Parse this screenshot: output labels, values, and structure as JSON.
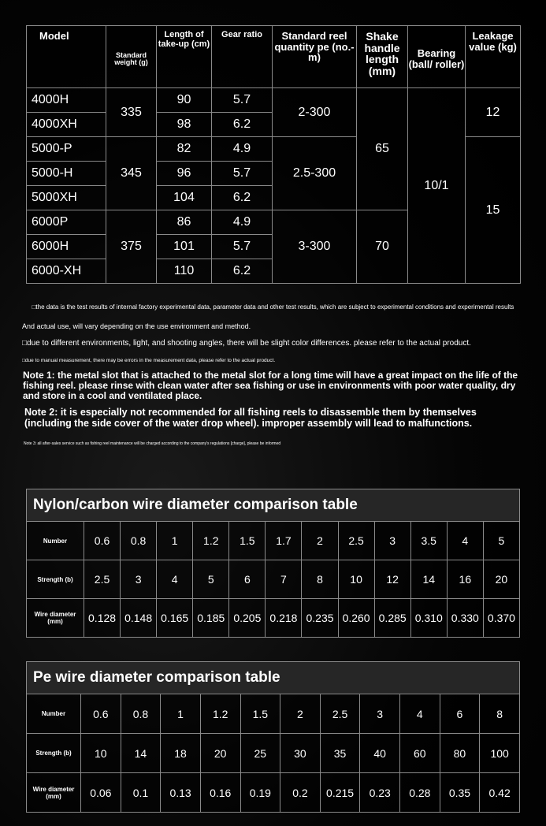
{
  "spec_table": {
    "headers": [
      "Model",
      "Standard weight (g)",
      "Length of take-up (cm)",
      "Gear ratio",
      "Standard reel quantity pe (no.-m)",
      "Shake handle length (mm)",
      "Bearing (ball/ roller)",
      "Leakage value (kg)"
    ],
    "rows": [
      {
        "model": "4000H",
        "takeup": "90",
        "gear": "5.7"
      },
      {
        "model": "4000XH",
        "takeup": "98",
        "gear": "6.2"
      },
      {
        "model": "5000-P",
        "takeup": "82",
        "gear": "4.9"
      },
      {
        "model": "5000-H",
        "takeup": "96",
        "gear": "5.7"
      },
      {
        "model": "5000XH",
        "takeup": "104",
        "gear": "6.2"
      },
      {
        "model": "6000P",
        "takeup": "86",
        "gear": "4.9"
      },
      {
        "model": "6000H",
        "takeup": "101",
        "gear": "5.7"
      },
      {
        "model": "6000-XH",
        "takeup": "110",
        "gear": "6.2"
      }
    ],
    "weights": [
      "335",
      "345",
      "375"
    ],
    "reel_quantity": [
      "2-300",
      "2.5-300",
      "3-300"
    ],
    "handle_length": [
      "65",
      "70"
    ],
    "bearing": "10/1",
    "leakage": [
      "12",
      "15"
    ]
  },
  "notes": {
    "line1": "□the data is the test results of internal factory experimental data, parameter data and other test results, which are subject to experimental conditions and experimental results",
    "line2": "And actual use, will vary depending on the use environment and method.",
    "line3": "□due to different environments, light, and shooting angles, there will be slight color differences. please refer to the actual product.",
    "line4": "□due to manual measurement, there may be errors in the measurement data, please refer to the actual product.",
    "note1": "Note 1: the metal slot that is attached to the metal slot for a long time will have a great impact on the life of the fishing reel. please rinse with clean water after sea fishing or use in environments with poor water quality, dry and store in a cool and ventilated place.",
    "note2": "Note 2: it is especially not recommended for all fishing reels to disassemble them by themselves (including the side cover of the water drop wheel). improper assembly will lead to malfunctions.",
    "note3": "Note 3: all after-sales service such as fishing reel maintenance will be charged according to the company's regulations [charge], please be informed"
  },
  "nylon_table": {
    "title": "Nylon/carbon wire diameter comparison table",
    "labels": [
      "Number",
      "Strength (b)",
      "Wire diameter (mm)"
    ],
    "number": [
      "0.6",
      "0.8",
      "1",
      "1.2",
      "1.5",
      "1.7",
      "2",
      "2.5",
      "3",
      "3.5",
      "4",
      "5"
    ],
    "strength": [
      "2.5",
      "3",
      "4",
      "5",
      "6",
      "7",
      "8",
      "10",
      "12",
      "14",
      "16",
      "20"
    ],
    "diameter": [
      "0.128",
      "0.148",
      "0.165",
      "0.185",
      "0.205",
      "0.218",
      "0.235",
      "0.260",
      "0.285",
      "0.310",
      "0.330",
      "0.370"
    ]
  },
  "pe_table": {
    "title": "Pe wire diameter comparison table",
    "labels": [
      "Number",
      "Strength (b)",
      "Wire diameter (mm)"
    ],
    "number": [
      "0.6",
      "0.8",
      "1",
      "1.2",
      "1.5",
      "2",
      "2.5",
      "3",
      "4",
      "6",
      "8"
    ],
    "strength": [
      "10",
      "14",
      "18",
      "20",
      "25",
      "30",
      "35",
      "40",
      "60",
      "80",
      "100"
    ],
    "diameter": [
      "0.06",
      "0.1",
      "0.13",
      "0.16",
      "0.19",
      "0.2",
      "0.215",
      "0.23",
      "0.28",
      "0.35",
      "0.42"
    ]
  }
}
